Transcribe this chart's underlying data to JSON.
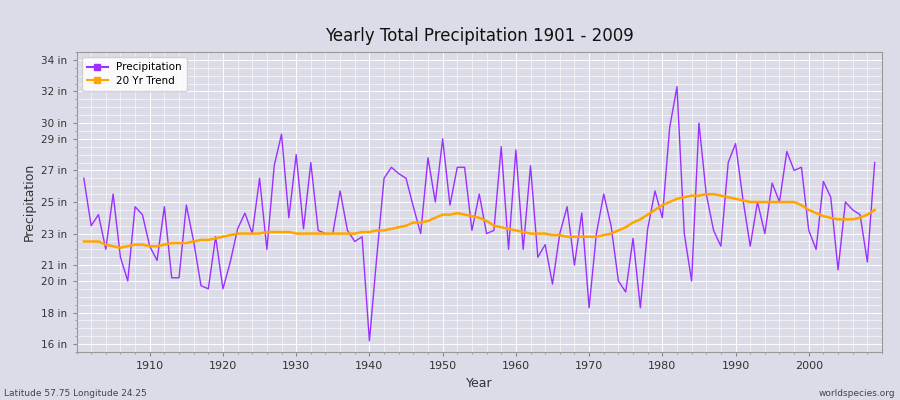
{
  "title": "Yearly Total Precipitation 1901 - 2009",
  "xlabel": "Year",
  "ylabel": "Precipitation",
  "lat_lon_label": "Latitude 57.75 Longitude 24.25",
  "watermark": "worldspecies.org",
  "yticks": [
    16,
    18,
    20,
    21,
    23,
    25,
    27,
    29,
    30,
    32,
    34
  ],
  "ytick_labels": [
    "16 in",
    "18 in",
    "20 in",
    "21 in",
    "23 in",
    "25 in",
    "27 in",
    "29 in",
    "30 in",
    "32 in",
    "34 in"
  ],
  "xticks": [
    1910,
    1920,
    1930,
    1940,
    1950,
    1960,
    1970,
    1980,
    1990,
    2000
  ],
  "ylim": [
    15.5,
    34.5
  ],
  "xlim": [
    1900,
    2010
  ],
  "precip_color": "#9B30FF",
  "trend_color": "#FFA500",
  "bg_color": "#DCDCE8",
  "plot_bg_color": "#DCDCE8",
  "grid_color": "#FFFFFF",
  "fig_bg_color": "#DCDCE8",
  "years": [
    1901,
    1902,
    1903,
    1904,
    1905,
    1906,
    1907,
    1908,
    1909,
    1910,
    1911,
    1912,
    1913,
    1914,
    1915,
    1916,
    1917,
    1918,
    1919,
    1920,
    1921,
    1922,
    1923,
    1924,
    1925,
    1926,
    1927,
    1928,
    1929,
    1930,
    1931,
    1932,
    1933,
    1934,
    1935,
    1936,
    1937,
    1938,
    1939,
    1940,
    1941,
    1942,
    1943,
    1944,
    1945,
    1946,
    1947,
    1948,
    1949,
    1950,
    1951,
    1952,
    1953,
    1954,
    1955,
    1956,
    1957,
    1958,
    1959,
    1960,
    1961,
    1962,
    1963,
    1964,
    1965,
    1966,
    1967,
    1968,
    1969,
    1970,
    1971,
    1972,
    1973,
    1974,
    1975,
    1976,
    1977,
    1978,
    1979,
    1980,
    1981,
    1982,
    1983,
    1984,
    1985,
    1986,
    1987,
    1988,
    1989,
    1990,
    1991,
    1992,
    1993,
    1994,
    1995,
    1996,
    1997,
    1998,
    1999,
    2000,
    2001,
    2002,
    2003,
    2004,
    2005,
    2006,
    2007,
    2008,
    2009
  ],
  "precip": [
    26.5,
    23.5,
    24.2,
    22.0,
    25.5,
    21.5,
    20.0,
    24.7,
    24.2,
    22.2,
    21.3,
    24.7,
    20.2,
    20.2,
    24.8,
    22.5,
    19.7,
    19.5,
    22.8,
    19.5,
    21.2,
    23.3,
    24.3,
    23.0,
    26.5,
    22.0,
    27.3,
    29.3,
    24.0,
    28.0,
    23.3,
    27.5,
    23.2,
    23.0,
    23.0,
    25.7,
    23.2,
    22.5,
    22.8,
    16.2,
    21.5,
    26.5,
    27.2,
    26.8,
    26.5,
    24.7,
    23.0,
    27.8,
    25.0,
    29.0,
    24.8,
    27.2,
    27.2,
    23.2,
    25.5,
    23.0,
    23.2,
    28.5,
    22.0,
    28.3,
    22.0,
    27.3,
    21.5,
    22.3,
    19.8,
    23.0,
    24.7,
    21.0,
    24.3,
    18.3,
    23.0,
    25.5,
    23.5,
    20.0,
    19.3,
    22.7,
    18.3,
    23.3,
    25.7,
    24.0,
    29.7,
    32.3,
    23.0,
    20.0,
    30.0,
    25.5,
    23.2,
    22.2,
    27.5,
    28.7,
    25.2,
    22.2,
    25.0,
    23.0,
    26.2,
    25.0,
    28.2,
    27.0,
    27.2,
    23.2,
    22.0,
    26.3,
    25.3,
    20.7,
    25.0,
    24.5,
    24.2,
    21.2,
    27.5
  ],
  "trend": [
    22.5,
    22.5,
    22.5,
    22.3,
    22.2,
    22.1,
    22.2,
    22.3,
    22.3,
    22.2,
    22.2,
    22.3,
    22.4,
    22.4,
    22.4,
    22.5,
    22.6,
    22.6,
    22.7,
    22.8,
    22.9,
    23.0,
    23.0,
    23.0,
    23.0,
    23.1,
    23.1,
    23.1,
    23.1,
    23.0,
    23.0,
    23.0,
    23.0,
    23.0,
    23.0,
    23.0,
    23.0,
    23.0,
    23.1,
    23.1,
    23.2,
    23.2,
    23.3,
    23.4,
    23.5,
    23.7,
    23.7,
    23.8,
    24.0,
    24.2,
    24.2,
    24.3,
    24.2,
    24.1,
    24.0,
    23.8,
    23.5,
    23.4,
    23.3,
    23.2,
    23.1,
    23.0,
    23.0,
    23.0,
    22.9,
    22.9,
    22.8,
    22.8,
    22.8,
    22.8,
    22.8,
    22.9,
    23.0,
    23.2,
    23.4,
    23.7,
    23.9,
    24.2,
    24.5,
    24.8,
    25.0,
    25.2,
    25.3,
    25.4,
    25.4,
    25.5,
    25.5,
    25.4,
    25.3,
    25.2,
    25.1,
    25.0,
    25.0,
    25.0,
    25.0,
    25.0,
    25.0,
    25.0,
    24.8,
    24.5,
    24.3,
    24.1,
    24.0,
    23.9,
    23.9,
    23.9,
    24.0,
    24.2,
    24.5
  ]
}
